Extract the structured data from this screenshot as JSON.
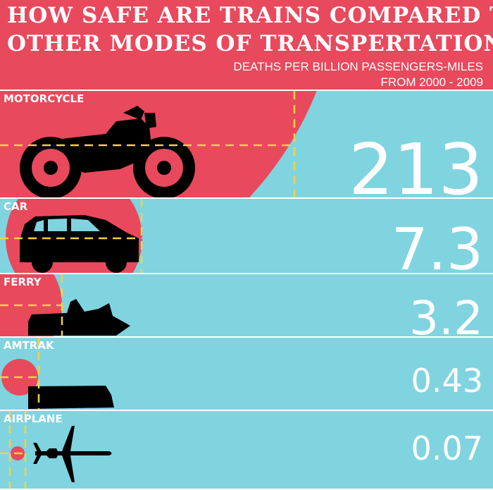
{
  "header": {
    "title_line1": "HOW SAFE ARE TRAINS COMPARED TO",
    "title_line2": "OTHER MODES OF TRANSPERTATION?",
    "subtitle_line1": "DEATHS PER BILLION PASSENGERS-MILES",
    "subtitle_line2": "FROM 2000 - 2009"
  },
  "colors": {
    "red": "#e8495c",
    "cyan": "#7fd4df",
    "dash": "#f5d142",
    "silhouette": "#000000",
    "text": "#ffffff"
  },
  "chart_data": {
    "type": "bubble",
    "title": "HOW SAFE ARE TRAINS COMPARED TO OTHER MODES OF TRANSPERTATION?",
    "subtitle": "DEATHS PER BILLION PASSENGERS-MILES FROM 2000 - 2009",
    "categories": [
      "MOTORCYCLE",
      "CAR",
      "FERRY",
      "AMTRAK",
      "AIRPLANE"
    ],
    "values": [
      213,
      7.3,
      3.2,
      0.43,
      0.07
    ],
    "value_labels": [
      "213",
      "7.3",
      "3.2",
      "0.43",
      "0.07"
    ],
    "icons": [
      "motorcycle-icon",
      "car-icon",
      "ferry-icon",
      "train-icon",
      "airplane-icon"
    ]
  }
}
